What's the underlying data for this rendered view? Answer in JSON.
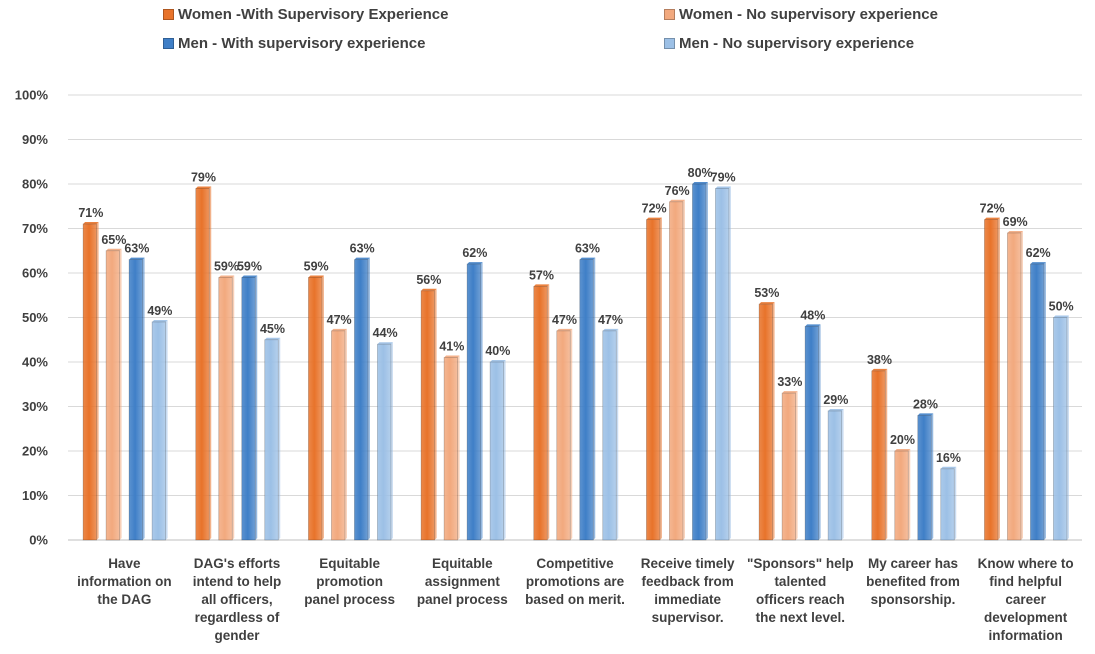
{
  "chart_data": {
    "type": "bar",
    "title": "",
    "xlabel": "",
    "ylabel": "",
    "ylim": [
      0,
      100
    ],
    "yticks": [
      "0%",
      "10%",
      "20%",
      "30%",
      "40%",
      "50%",
      "60%",
      "70%",
      "80%",
      "90%",
      "100%"
    ],
    "grid": true,
    "legend_position": "top",
    "categories": [
      [
        "Have",
        "information on",
        "the DAG"
      ],
      [
        "DAG's efforts",
        "intend to help",
        "all officers,",
        "regardless of",
        "gender"
      ],
      [
        "Equitable",
        "promotion",
        "panel process"
      ],
      [
        "Equitable",
        "assignment",
        "panel process"
      ],
      [
        "Competitive",
        "promotions are",
        "based on merit."
      ],
      [
        "Receive timely",
        "feedback from",
        "immediate",
        "supervisor."
      ],
      [
        "\"Sponsors\" help",
        "talented",
        "officers reach",
        "the next level."
      ],
      [
        "My career has",
        "benefited from",
        "sponsorship."
      ],
      [
        "Know where to",
        "find helpful",
        "career",
        "development",
        "information"
      ]
    ],
    "series": [
      {
        "name": "Women -With Supervisory Experience",
        "color": "#E8732A",
        "values": [
          71,
          79,
          59,
          56,
          57,
          72,
          53,
          38,
          72
        ]
      },
      {
        "name": "Women - No supervisory experience",
        "color": "#F2A97E",
        "values": [
          65,
          59,
          47,
          41,
          47,
          76,
          33,
          20,
          69
        ]
      },
      {
        "name": "Men - With supervisory experience",
        "color": "#3F7FC7",
        "values": [
          63,
          59,
          63,
          62,
          63,
          80,
          48,
          28,
          62
        ]
      },
      {
        "name": "Men - No supervisory experience",
        "color": "#9CC0E6",
        "values": [
          49,
          45,
          44,
          40,
          47,
          79,
          29,
          16,
          50
        ]
      }
    ],
    "data_labels": [
      [
        "71%",
        "65%",
        "63%",
        "49%"
      ],
      [
        "79%",
        "59%",
        "59%",
        "45%"
      ],
      [
        "59%",
        "47%",
        "63%",
        "44%"
      ],
      [
        "56%",
        "41%",
        "62%",
        "40%"
      ],
      [
        "57%",
        "47%",
        "63%",
        "47%"
      ],
      [
        "72%",
        "76%",
        "80%",
        "79%"
      ],
      [
        "53%",
        "33%",
        "48%",
        "29%"
      ],
      [
        "38%",
        "20%",
        "28%",
        "16%"
      ],
      [
        "72%",
        "69%",
        "62%",
        "50%"
      ]
    ]
  }
}
